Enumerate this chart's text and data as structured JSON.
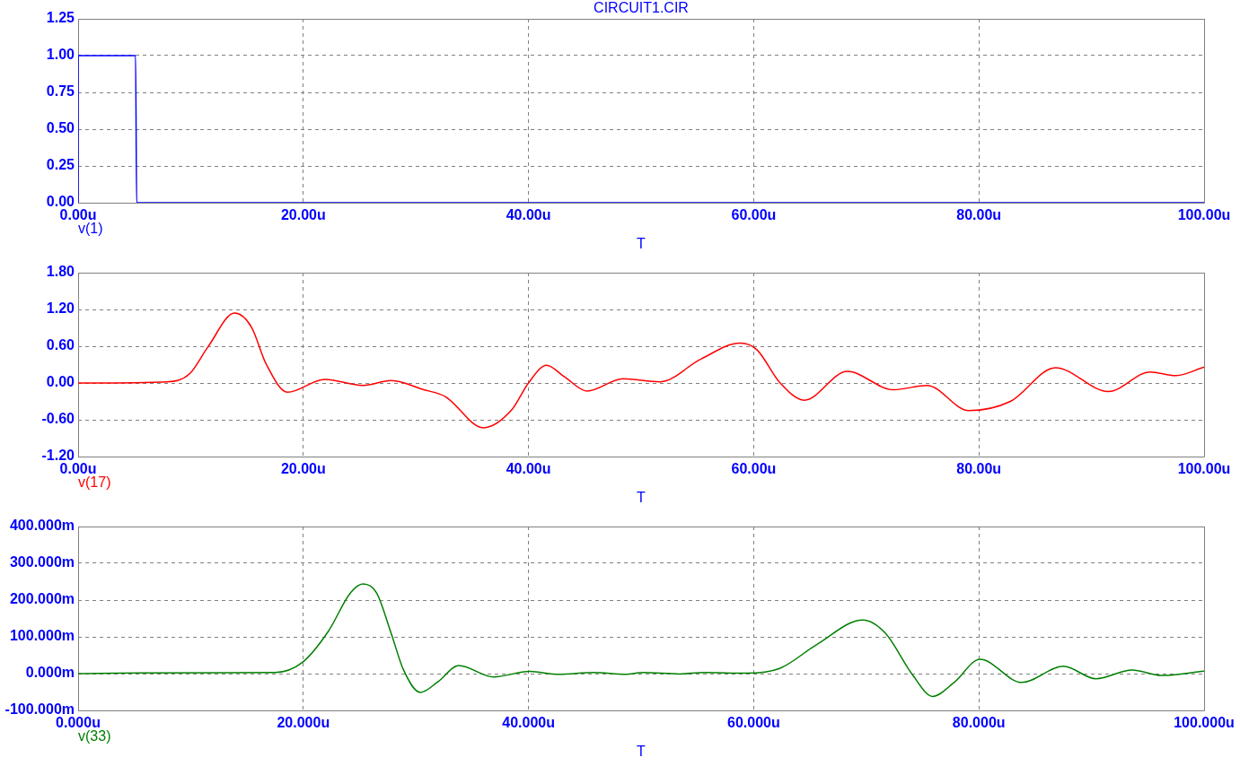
{
  "chart_data": [
    {
      "type": "line",
      "title": "CIRCUIT1.CIR",
      "xlabel": "T",
      "grid": true,
      "marker": "none",
      "xlim": [
        0,
        100
      ],
      "xticks": [
        {
          "value": 0,
          "label": "0.00u"
        },
        {
          "value": 20,
          "label": "20.00u"
        },
        {
          "value": 40,
          "label": "40.00u"
        },
        {
          "value": 60,
          "label": "60.00u"
        },
        {
          "value": 80,
          "label": "80.00u"
        },
        {
          "value": 100,
          "label": "100.00u"
        }
      ],
      "ylim": [
        0,
        1.25
      ],
      "yticks": [
        {
          "value": 0,
          "label": "0.00"
        },
        {
          "value": 0.25,
          "label": "0.25"
        },
        {
          "value": 0.5,
          "label": "0.50"
        },
        {
          "value": 0.75,
          "label": "0.75"
        },
        {
          "value": 1,
          "label": "1.00"
        },
        {
          "value": 1.25,
          "label": "1.25"
        }
      ],
      "series": [
        {
          "name": "v(1)",
          "color": "#0000ff",
          "x": [
            0,
            0,
            5.1,
            5.2,
            100
          ],
          "values": [
            0,
            1,
            1,
            0,
            0
          ]
        }
      ]
    },
    {
      "type": "line",
      "xlabel": "T",
      "grid": true,
      "marker": "none",
      "xlim": [
        0,
        100
      ],
      "xticks": [
        {
          "value": 0,
          "label": "0.00u"
        },
        {
          "value": 20,
          "label": "20.00u"
        },
        {
          "value": 40,
          "label": "40.00u"
        },
        {
          "value": 60,
          "label": "60.00u"
        },
        {
          "value": 80,
          "label": "80.00u"
        },
        {
          "value": 100,
          "label": "100.00u"
        }
      ],
      "ylim": [
        -1.2,
        1.8
      ],
      "yticks": [
        {
          "value": -1.2,
          "label": "-1.20"
        },
        {
          "value": -0.6,
          "label": "-0.60"
        },
        {
          "value": 0,
          "label": "0.00"
        },
        {
          "value": 0.6,
          "label": "0.60"
        },
        {
          "value": 1.2,
          "label": "1.20"
        },
        {
          "value": 1.8,
          "label": "1.80"
        }
      ],
      "series": [
        {
          "name": "v(17)",
          "color": "#ff0000",
          "x": [
            0,
            7.9,
            9.9,
            11.5,
            13.9,
            15.4,
            16.7,
            18.6,
            21.9,
            25.3,
            27.8,
            30.7,
            32.6,
            36.0,
            38.5,
            40.0,
            41.6,
            43.2,
            45.2,
            48.4,
            51.7,
            55.3,
            58.8,
            60.3,
            62.3,
            64.5,
            68.3,
            72.4,
            75.4,
            79.1,
            82.8,
            86.8,
            91.5,
            95.2,
            97.5,
            100
          ],
          "values": [
            0,
            0.02,
            0.15,
            0.58,
            1.14,
            0.91,
            0.31,
            -0.15,
            0.06,
            -0.04,
            0.04,
            -0.11,
            -0.22,
            -0.73,
            -0.44,
            0,
            0.29,
            0.1,
            -0.13,
            0.07,
            0.02,
            0.39,
            0.65,
            0.54,
            0.01,
            -0.28,
            0.19,
            -0.11,
            -0.04,
            -0.45,
            -0.3,
            0.25,
            -0.14,
            0.18,
            0.12,
            0.26
          ]
        }
      ]
    },
    {
      "type": "line",
      "xlabel": "T",
      "grid": true,
      "marker": "none",
      "xlim": [
        0,
        100
      ],
      "xticks": [
        {
          "value": 0,
          "label": "0.000u"
        },
        {
          "value": 20,
          "label": "20.000u"
        },
        {
          "value": 40,
          "label": "40.000u"
        },
        {
          "value": 60,
          "label": "60.000u"
        },
        {
          "value": 80,
          "label": "80.000u"
        },
        {
          "value": 100,
          "label": "100.000u"
        }
      ],
      "ylim": [
        -100,
        400
      ],
      "yticks": [
        {
          "value": -100,
          "label": "-100.000m"
        },
        {
          "value": 0,
          "label": "0.000m"
        },
        {
          "value": 100,
          "label": "100.000m"
        },
        {
          "value": 200,
          "label": "200.000m"
        },
        {
          "value": 300,
          "label": "300.000m"
        },
        {
          "value": 400,
          "label": "400.000m"
        }
      ],
      "series": [
        {
          "name": "v(33)",
          "color": "#008000",
          "x": [
            0,
            5.6,
            17.5,
            19.9,
            22.2,
            24.2,
            25.3,
            26.5,
            27.8,
            28.9,
            30.4,
            32.0,
            33.8,
            36.9,
            40.1,
            42.7,
            45.8,
            48.6,
            50.2,
            53.4,
            55.6,
            59.3,
            62.3,
            65.6,
            69.7,
            71.7,
            74.1,
            75.9,
            77.8,
            80.1,
            83.8,
            87.5,
            90.4,
            93.6,
            96.2,
            100
          ],
          "values": [
            0,
            2,
            3,
            30,
            114,
            220,
            244,
            220,
            110,
            10,
            -51,
            -21,
            22,
            -9,
            6,
            -2,
            3,
            -2,
            3,
            -1,
            3,
            1,
            14,
            79,
            146,
            110,
            -3,
            -62,
            -24,
            39,
            -24,
            20,
            -14,
            10,
            -5,
            7
          ]
        }
      ]
    }
  ]
}
